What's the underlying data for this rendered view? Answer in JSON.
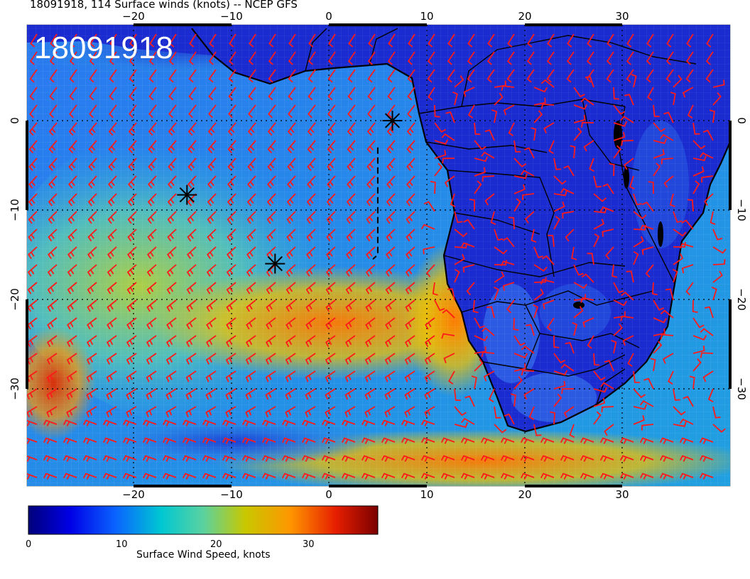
{
  "header": {
    "title": "18091918, 114 Surface winds (knots) -- NCEP GFS",
    "stamp": "18091918"
  },
  "map": {
    "lon_ticks": [
      "−20",
      "−10",
      "0",
      "10",
      "20",
      "30"
    ],
    "lat_ticks": [
      "0",
      "−10",
      "−20",
      "−30"
    ],
    "barb_color": "#ff1a1a",
    "coast_color": "#000000",
    "markers": [
      {
        "name": "storm-marker",
        "lon": 6.5,
        "lat": 0.0
      },
      {
        "name": "storm-marker",
        "lon": -14.5,
        "lat": -8.3
      },
      {
        "name": "storm-marker",
        "lon": -5.5,
        "lat": -16.0
      }
    ],
    "dashed_track": [
      [
        5.0,
        -3.0
      ],
      [
        5.0,
        -15.0
      ],
      [
        4.5,
        -15.5
      ]
    ]
  },
  "colorbar": {
    "ticks": [
      "0",
      "10",
      "20",
      "30"
    ],
    "label": "Surface Wind Speed, knots",
    "colors": [
      "#00007a",
      "#0000e6",
      "#0a64ff",
      "#00c8d2",
      "#5ad2a0",
      "#c8c800",
      "#ff9600",
      "#e61e00",
      "#7a0000"
    ],
    "range": [
      0,
      37
    ]
  }
}
